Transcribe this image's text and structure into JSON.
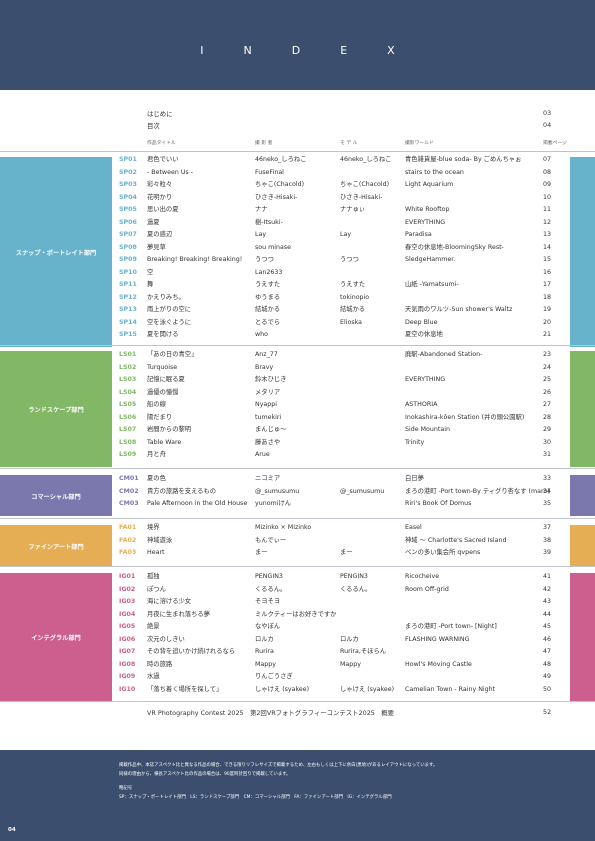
{
  "header": {
    "title": "INDEX"
  },
  "intro": [
    {
      "title": "はじめに",
      "page": "03"
    },
    {
      "title": "目次",
      "page": "04"
    }
  ],
  "columns": {
    "title": "作品タイトル",
    "author": "撮 影 者",
    "model": "モ デ ル",
    "world": "撮影ワールド",
    "page": "掲載ページ"
  },
  "colors": {
    "header": "#3c4e6e",
    "snap": "#67b3cc",
    "landscape": "#82b766",
    "commercial": "#7b78ad",
    "fineart": "#e5ae54",
    "integral": "#cc5f8d"
  },
  "sections": [
    {
      "label": "スナップ・ポートレイト部門",
      "color": "#67b3cc",
      "rows": [
        [
          "SP01",
          "君色でいい",
          "46neko_しろねこ",
          "46neko_しろねこ",
          "青色雑貨屋-blue soda- By ごめんちゃぉ",
          "07"
        ],
        [
          "SP02",
          "- Between Us -",
          "FuseFinal",
          "",
          "stairs to the ocean",
          "08"
        ],
        [
          "SP03",
          "彩々粒々",
          "ちゃこ(Chacold)",
          "ちゃこ(Chacold)",
          "Light Aquarium",
          "09"
        ],
        [
          "SP04",
          "花明かり",
          "ひさき-Hisaki-",
          "ひさき-Hisaki-",
          "",
          "10"
        ],
        [
          "SP05",
          "思い出の夏",
          "ナナ",
          "ナナゅぃ",
          "White Rooftop",
          "11"
        ],
        [
          "SP06",
          "過夏",
          "樹-Itsuki-",
          "",
          "EVERYTHING",
          "12"
        ],
        [
          "SP07",
          "夏の惑辺",
          "Lay",
          "Lay",
          "Paradisa",
          "13"
        ],
        [
          "SP08",
          "夢見草",
          "sou minase",
          "",
          "春空の休息地-BloomingSky Rest-",
          "14"
        ],
        [
          "SP09",
          "Breaking! Breaking! Breaking!",
          "うつつ",
          "うつつ",
          "SledgeHammer.",
          "15"
        ],
        [
          "SP10",
          "空",
          "Lan2633",
          "",
          "",
          "16"
        ],
        [
          "SP11",
          "舞",
          "うえすた",
          "うえすた",
          "山紙 -Yamatsumi-",
          "17"
        ],
        [
          "SP12",
          "かえりみち。",
          "ゆうまる",
          "tokinopio",
          "",
          "18"
        ],
        [
          "SP13",
          "雨上がりの空に",
          "結城かる",
          "結城かる",
          "天気雨のワルツ-Sun shower's Waltz",
          "19"
        ],
        [
          "SP14",
          "空を泳ぐように",
          "とるでら",
          "Elioska",
          "Deep Blue",
          "20"
        ],
        [
          "SP15",
          "夏を開ける",
          "who",
          "",
          "夏空の休息地",
          "21"
        ]
      ]
    },
    {
      "label": "ランドスケープ部門",
      "color": "#82b766",
      "rows": [
        [
          "LS01",
          "「あの日の青空」",
          "Anz_77",
          "",
          "廃駅-Abandoned Station-",
          "23"
        ],
        [
          "LS02",
          "Turquoise",
          "Bravy",
          "",
          "",
          "24"
        ],
        [
          "LS03",
          "記憶に眠る夏",
          "鈴木ひじき",
          "",
          "EVERYTHING",
          "25"
        ],
        [
          "LS04",
          "過優の憧憬",
          "メタリア",
          "",
          "",
          "26"
        ],
        [
          "LS05",
          "船の線",
          "Nyappi",
          "",
          "ASTHORIA",
          "27"
        ],
        [
          "LS06",
          "陽だまり",
          "tumekiri",
          "",
          "Inokashira-kōen Station (井の頭公園駅)",
          "28"
        ],
        [
          "LS07",
          "岩間からの黎明",
          "まんじゅ〜",
          "",
          "Side Mountain",
          "29"
        ],
        [
          "LS08",
          "Table Ware",
          "藤あさや",
          "",
          "Trinity",
          "30"
        ],
        [
          "LS09",
          "月と舟",
          "Arue",
          "",
          "",
          "31"
        ]
      ]
    },
    {
      "label": "コマーシャル部門",
      "color": "#7b78ad",
      "rows": [
        [
          "CM01",
          "夏の色",
          "ニコミア",
          "",
          "白日夢",
          "33"
        ],
        [
          "CM02",
          "貴方の旅路を支えるもの",
          "@_sumusumu",
          "@_sumusumu",
          "まろの港町 -Port town-By ティグり杏なす (maro)",
          "34"
        ],
        [
          "CM03",
          "Pale Afternoon in the Old House",
          "yunomiけん",
          "",
          "Riri's Book Of Domus",
          "35"
        ]
      ]
    },
    {
      "label": "ファインアート部門",
      "color": "#e5ae54",
      "rows": [
        [
          "FA01",
          "境界",
          "Mizinko × Mizinko",
          "",
          "Easel",
          "37"
        ],
        [
          "FA02",
          "神域遊泳",
          "もんでぃー",
          "",
          "神域 〜 Charlotte's Sacred Island",
          "38"
        ],
        [
          "FA03",
          "Heart",
          "まー",
          "まー",
          "ペンの多い集会所 qvpens",
          "39"
        ]
      ]
    },
    {
      "label": "インテグラル部門",
      "color": "#cc5f8d",
      "rows": [
        [
          "IG01",
          "孤独",
          "PENGIN3",
          "PENGIN3",
          "Ricocheive",
          "41"
        ],
        [
          "IG02",
          "ぽつん",
          "くるるん。",
          "くるるん。",
          "Room Off-grid",
          "42"
        ],
        [
          "IG03",
          "海に溶ける少女",
          "そヨそヨ",
          "",
          "",
          "43"
        ],
        [
          "IG04",
          "月夜に生まれ落ちる夢",
          "ミルクティーはお好きですか",
          "",
          "",
          "44"
        ],
        [
          "IG05",
          "絶景",
          "なやぼん",
          "",
          "まろの港町 -Port town- [Night]",
          "45"
        ],
        [
          "IG06",
          "次元のしきい",
          "ロルカ",
          "ロルカ",
          "FLASHING WARNING",
          "46"
        ],
        [
          "IG07",
          "その背を追いかけ続けれるなら",
          "Rurira",
          "Rurira,そほらん",
          "",
          "47"
        ],
        [
          "IG08",
          "時の旅路",
          "Mappy",
          "Mappy",
          "Howl's Moving Castle",
          "48"
        ],
        [
          "IG09",
          "水過",
          "りんごうさぎ",
          "",
          "",
          "49"
        ],
        [
          "IG10",
          "「落ち着く場所を探して」",
          "しゃけえ (syakee)",
          "しゃけえ (syakee)",
          "Camelian Town - Rainy Night",
          "50"
        ]
      ]
    }
  ],
  "outline": {
    "title": "VR Photography Contest 2025　第2回VRフォトグラフィーコンテスト2025　概要",
    "page": "52"
  },
  "footer": {
    "note1": "掲載作品中、本誌アスペクト比と異なる作品の場合、できる限りリフレサイズで掲載するため、左右もしくは上下に余白(黒地)があるレイアウトになっています。",
    "note2": "同様の理由から、横長アスペクト比の作品の場合は、90度時計回りで掲載しています。",
    "legend_title": "略記号",
    "legend": "SP：スナップ・ポートレイト部門　LS：ランドスケープ部門　CM：コマーシャル部門　FA：ファインアート部門　IG：インテグラル部門",
    "page_number": "04"
  }
}
